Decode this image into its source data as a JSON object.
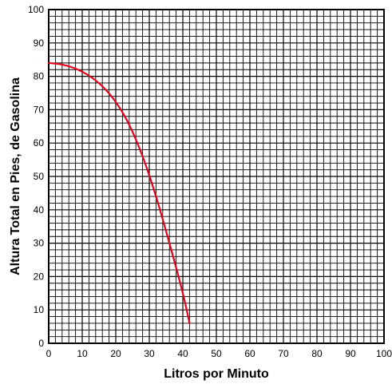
{
  "chart_data": {
    "type": "line",
    "title": "",
    "xlabel": "Litros por Minuto",
    "ylabel": "Altura Total en Pies, de Gasolina",
    "xlim": [
      0,
      100
    ],
    "ylim": [
      0,
      100
    ],
    "x_ticks": [
      "0",
      "10",
      "20",
      "30",
      "40",
      "50",
      "60",
      "70",
      "80",
      "90",
      "100"
    ],
    "y_ticks": [
      "0",
      "10",
      "20",
      "30",
      "40",
      "50",
      "60",
      "70",
      "80",
      "90",
      "100"
    ],
    "grid": true,
    "minor_grid_step": 2,
    "series": [
      {
        "color": "#e3001b",
        "x": [
          0,
          4,
          8,
          12,
          16,
          20,
          24,
          28,
          32,
          36,
          40,
          42
        ],
        "y": [
          84,
          83.5,
          82.3,
          80.2,
          77,
          72.3,
          65.5,
          56,
          44,
          30,
          15,
          6
        ]
      }
    ]
  }
}
